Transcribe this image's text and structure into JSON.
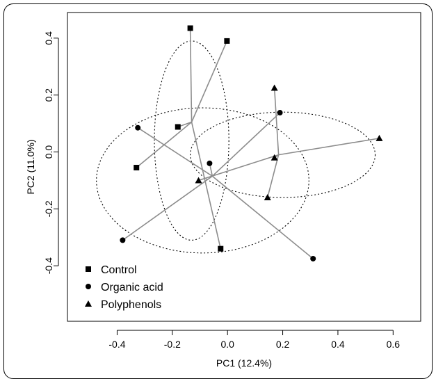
{
  "chart_data": {
    "type": "scatter",
    "title": "",
    "xlabel": "PC1 (12.4%)",
    "ylabel": "PC2  (11.0%)",
    "xlim": [
      -0.58,
      0.7
    ],
    "ylim": [
      -0.595,
      0.49
    ],
    "xticks": [
      "-0.4",
      "-0.2",
      "0.0",
      "0.2",
      "0.4",
      "0.6"
    ],
    "xtick_values": [
      -0.4,
      -0.2,
      0.0,
      0.2,
      0.4,
      0.6
    ],
    "yticks": [
      "-0.4",
      "-0.2",
      "0.0",
      "0.2",
      "0.4"
    ],
    "ytick_values": [
      -0.4,
      -0.2,
      0.0,
      0.2,
      0.4
    ],
    "grid": false,
    "legend_position": "bottom-left",
    "series": [
      {
        "name": "Control",
        "marker": "square",
        "centroid": [
          -0.13,
          0.105
        ],
        "ellipse": {
          "cx": -0.13,
          "cy": 0.04,
          "rx": 0.135,
          "ry": 0.35
        },
        "points": [
          {
            "x": -0.135,
            "y": 0.435
          },
          {
            "x": -0.002,
            "y": 0.39
          },
          {
            "x": -0.18,
            "y": 0.088
          },
          {
            "x": -0.33,
            "y": -0.055
          },
          {
            "x": -0.025,
            "y": -0.34
          }
        ]
      },
      {
        "name": "Organic acid",
        "marker": "circle",
        "centroid": [
          -0.055,
          -0.085
        ],
        "ellipse": {
          "cx": -0.09,
          "cy": -0.1,
          "rx": 0.385,
          "ry": 0.255
        },
        "points": [
          {
            "x": -0.325,
            "y": 0.085
          },
          {
            "x": 0.19,
            "y": 0.138
          },
          {
            "x": -0.065,
            "y": -0.04
          },
          {
            "x": -0.38,
            "y": -0.31
          },
          {
            "x": 0.31,
            "y": -0.375
          }
        ]
      },
      {
        "name": "Polyphenols",
        "marker": "triangle",
        "centroid": [
          0.185,
          -0.01
        ],
        "ellipse": {
          "cx": 0.2,
          "cy": -0.01,
          "rx": 0.335,
          "ry": 0.15
        },
        "points": [
          {
            "x": 0.17,
            "y": 0.225
          },
          {
            "x": 0.55,
            "y": 0.048
          },
          {
            "x": 0.17,
            "y": -0.02
          },
          {
            "x": -0.105,
            "y": -0.1
          },
          {
            "x": 0.145,
            "y": -0.16
          }
        ]
      }
    ]
  }
}
